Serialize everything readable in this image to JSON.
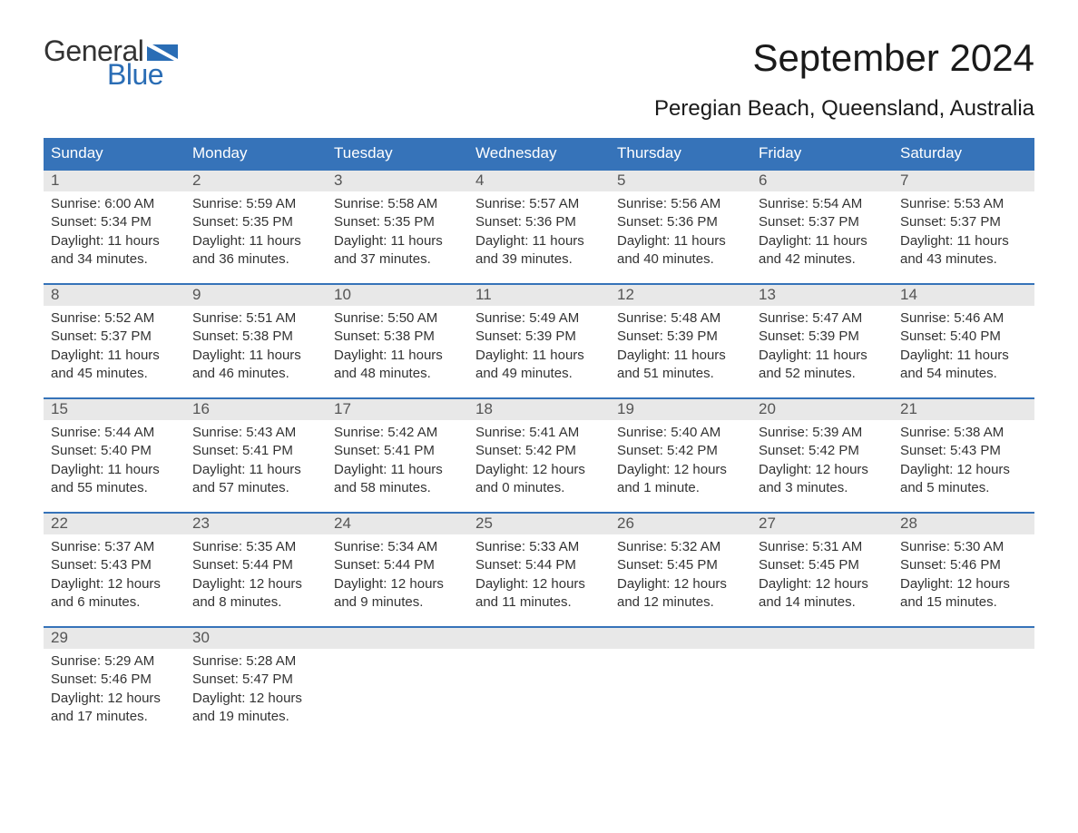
{
  "logo": {
    "general": "General",
    "blue": "Blue",
    "flag_color": "#2a6db5"
  },
  "title": "September 2024",
  "subtitle": "Peregian Beach, Queensland, Australia",
  "weekdays": [
    "Sunday",
    "Monday",
    "Tuesday",
    "Wednesday",
    "Thursday",
    "Friday",
    "Saturday"
  ],
  "labels": {
    "sunrise": "Sunrise:",
    "sunset": "Sunset:",
    "daylight": "Daylight:"
  },
  "colors": {
    "header_bg": "#3673b9",
    "header_text": "#ffffff",
    "daynum_bg": "#e8e8e8",
    "daynum_text": "#555555",
    "body_text": "#333333",
    "border": "#3673b9",
    "background": "#ffffff",
    "logo_blue": "#2a6db5"
  },
  "typography": {
    "title_fontsize": 42,
    "subtitle_fontsize": 24,
    "weekday_fontsize": 17,
    "daynum_fontsize": 17,
    "body_fontsize": 15,
    "font_family": "Arial"
  },
  "layout": {
    "columns": 7,
    "rows": 5,
    "cell_min_height": 126
  },
  "days": [
    {
      "n": "1",
      "sunrise": "6:00 AM",
      "sunset": "5:34 PM",
      "daylight": "11 hours and 34 minutes."
    },
    {
      "n": "2",
      "sunrise": "5:59 AM",
      "sunset": "5:35 PM",
      "daylight": "11 hours and 36 minutes."
    },
    {
      "n": "3",
      "sunrise": "5:58 AM",
      "sunset": "5:35 PM",
      "daylight": "11 hours and 37 minutes."
    },
    {
      "n": "4",
      "sunrise": "5:57 AM",
      "sunset": "5:36 PM",
      "daylight": "11 hours and 39 minutes."
    },
    {
      "n": "5",
      "sunrise": "5:56 AM",
      "sunset": "5:36 PM",
      "daylight": "11 hours and 40 minutes."
    },
    {
      "n": "6",
      "sunrise": "5:54 AM",
      "sunset": "5:37 PM",
      "daylight": "11 hours and 42 minutes."
    },
    {
      "n": "7",
      "sunrise": "5:53 AM",
      "sunset": "5:37 PM",
      "daylight": "11 hours and 43 minutes."
    },
    {
      "n": "8",
      "sunrise": "5:52 AM",
      "sunset": "5:37 PM",
      "daylight": "11 hours and 45 minutes."
    },
    {
      "n": "9",
      "sunrise": "5:51 AM",
      "sunset": "5:38 PM",
      "daylight": "11 hours and 46 minutes."
    },
    {
      "n": "10",
      "sunrise": "5:50 AM",
      "sunset": "5:38 PM",
      "daylight": "11 hours and 48 minutes."
    },
    {
      "n": "11",
      "sunrise": "5:49 AM",
      "sunset": "5:39 PM",
      "daylight": "11 hours and 49 minutes."
    },
    {
      "n": "12",
      "sunrise": "5:48 AM",
      "sunset": "5:39 PM",
      "daylight": "11 hours and 51 minutes."
    },
    {
      "n": "13",
      "sunrise": "5:47 AM",
      "sunset": "5:39 PM",
      "daylight": "11 hours and 52 minutes."
    },
    {
      "n": "14",
      "sunrise": "5:46 AM",
      "sunset": "5:40 PM",
      "daylight": "11 hours and 54 minutes."
    },
    {
      "n": "15",
      "sunrise": "5:44 AM",
      "sunset": "5:40 PM",
      "daylight": "11 hours and 55 minutes."
    },
    {
      "n": "16",
      "sunrise": "5:43 AM",
      "sunset": "5:41 PM",
      "daylight": "11 hours and 57 minutes."
    },
    {
      "n": "17",
      "sunrise": "5:42 AM",
      "sunset": "5:41 PM",
      "daylight": "11 hours and 58 minutes."
    },
    {
      "n": "18",
      "sunrise": "5:41 AM",
      "sunset": "5:42 PM",
      "daylight": "12 hours and 0 minutes."
    },
    {
      "n": "19",
      "sunrise": "5:40 AM",
      "sunset": "5:42 PM",
      "daylight": "12 hours and 1 minute."
    },
    {
      "n": "20",
      "sunrise": "5:39 AM",
      "sunset": "5:42 PM",
      "daylight": "12 hours and 3 minutes."
    },
    {
      "n": "21",
      "sunrise": "5:38 AM",
      "sunset": "5:43 PM",
      "daylight": "12 hours and 5 minutes."
    },
    {
      "n": "22",
      "sunrise": "5:37 AM",
      "sunset": "5:43 PM",
      "daylight": "12 hours and 6 minutes."
    },
    {
      "n": "23",
      "sunrise": "5:35 AM",
      "sunset": "5:44 PM",
      "daylight": "12 hours and 8 minutes."
    },
    {
      "n": "24",
      "sunrise": "5:34 AM",
      "sunset": "5:44 PM",
      "daylight": "12 hours and 9 minutes."
    },
    {
      "n": "25",
      "sunrise": "5:33 AM",
      "sunset": "5:44 PM",
      "daylight": "12 hours and 11 minutes."
    },
    {
      "n": "26",
      "sunrise": "5:32 AM",
      "sunset": "5:45 PM",
      "daylight": "12 hours and 12 minutes."
    },
    {
      "n": "27",
      "sunrise": "5:31 AM",
      "sunset": "5:45 PM",
      "daylight": "12 hours and 14 minutes."
    },
    {
      "n": "28",
      "sunrise": "5:30 AM",
      "sunset": "5:46 PM",
      "daylight": "12 hours and 15 minutes."
    },
    {
      "n": "29",
      "sunrise": "5:29 AM",
      "sunset": "5:46 PM",
      "daylight": "12 hours and 17 minutes."
    },
    {
      "n": "30",
      "sunrise": "5:28 AM",
      "sunset": "5:47 PM",
      "daylight": "12 hours and 19 minutes."
    }
  ],
  "trailing_empty": 5
}
